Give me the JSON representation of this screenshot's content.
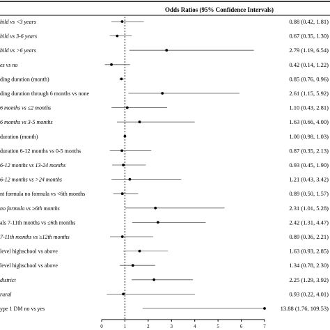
{
  "header": "Odds Ratios (95% Confidence Intervals)",
  "chart_data": {
    "type": "forest",
    "title": "Odds Ratios (95% Confidence Intervals)",
    "reference_line": 1,
    "xlim": [
      0,
      7
    ],
    "x_ticks": [
      0,
      1,
      2,
      3,
      4,
      5,
      6,
      7
    ],
    "rows": [
      {
        "label": "hild vs <3 years",
        "italic": true,
        "or": 0.88,
        "lo": 0.42,
        "hi": 1.81,
        "ci_text": "0.88 (0.42, 1.81)"
      },
      {
        "label": "hild vs 3-6 years",
        "italic": true,
        "or": 0.67,
        "lo": 0.35,
        "hi": 1.3,
        "ci_text": "0.67 (0.35, 1.30)"
      },
      {
        "label": "hild vs >6 years",
        "italic": true,
        "or": 2.79,
        "lo": 1.19,
        "hi": 6.54,
        "ci_text": "2.79 (1.19, 6.54)"
      },
      {
        "label": "es vs no",
        "italic": true,
        "or": 0.42,
        "lo": 0.14,
        "hi": 1.22,
        "ci_text": "0.42 (0.14, 1.22)"
      },
      {
        "label": "ding duration (month)",
        "italic": false,
        "or": 0.85,
        "lo": 0.76,
        "hi": 0.96,
        "ci_text": "0.85 (0.76, 0.96)"
      },
      {
        "label": "ding duration through 6 months vs none",
        "italic": false,
        "or": 2.61,
        "lo": 1.15,
        "hi": 5.92,
        "ci_text": "2.61 (1.15, 5.92)"
      },
      {
        "label": "6 months vs ≤2 months",
        "italic": true,
        "or": 1.1,
        "lo": 0.43,
        "hi": 2.81,
        "ci_text": "1.10 (0.43, 2.81)"
      },
      {
        "label": "6 months vs 3-5 months",
        "italic": true,
        "or": 1.63,
        "lo": 0.66,
        "hi": 4.0,
        "ci_text": "1.63 (0.66, 4.00)"
      },
      {
        "label": "duration (month)",
        "italic": false,
        "or": 1.0,
        "lo": 0.98,
        "hi": 1.03,
        "ci_text": "1.00 (0.98, 1.03)"
      },
      {
        "label": "duration 6-12 months vs 0-5 months",
        "italic": false,
        "or": 0.87,
        "lo": 0.35,
        "hi": 2.13,
        "ci_text": "0.87 (0.35, 2.13)"
      },
      {
        "label": "6-12 months vs 13-24 months",
        "italic": true,
        "or": 0.93,
        "lo": 0.45,
        "hi": 1.9,
        "ci_text": "0.93 (0.45, 1.90)"
      },
      {
        "label": "6-12 months vs >24 months",
        "italic": true,
        "or": 1.21,
        "lo": 0.43,
        "hi": 3.42,
        "ci_text": "1.21 (0.43, 3.42)"
      },
      {
        "label": "nt formula no formula vs <6th months",
        "italic": false,
        "or": 0.89,
        "lo": 0.5,
        "hi": 1.57,
        "ci_text": "0.89 (0.50, 1.57)"
      },
      {
        "label": "no formula vs ≥6th months",
        "italic": true,
        "or": 2.31,
        "lo": 1.01,
        "hi": 5.28,
        "ci_text": "2.31 (1.01, 5.28)"
      },
      {
        "label": "als 7-11th months vs ≤6th months",
        "italic": false,
        "or": 2.42,
        "lo": 1.31,
        "hi": 4.47,
        "ci_text": "2.42 (1.31, 4.47)"
      },
      {
        "label": "7-11th months vs ≥12th months",
        "italic": true,
        "or": 0.89,
        "lo": 0.36,
        "hi": 2.21,
        "ci_text": "0.89 (0.36, 2.21)"
      },
      {
        "label": "level highschool vs above",
        "italic": false,
        "or": 1.63,
        "lo": 0.93,
        "hi": 2.85,
        "ci_text": "1.63 (0.93, 2.85)"
      },
      {
        "label": "level highschool vs above",
        "italic": false,
        "or": 1.34,
        "lo": 0.78,
        "hi": 2.3,
        "ci_text": "1.34 (0.78, 2.30)"
      },
      {
        "label": "district",
        "italic": true,
        "or": 2.25,
        "lo": 1.29,
        "hi": 3.92,
        "ci_text": "2.25 (1.29, 3.92)"
      },
      {
        "label": "rural",
        "italic": true,
        "or": 0.93,
        "lo": 0.22,
        "hi": 4.01,
        "ci_text": "0.93 (0.22, 4.01)"
      },
      {
        "label": "ype 1 DM no vs yes",
        "italic": false,
        "or": 13.88,
        "lo": 1.76,
        "hi": 109.53,
        "ci_text": "13.88 (1.76, 109.53)"
      }
    ]
  }
}
